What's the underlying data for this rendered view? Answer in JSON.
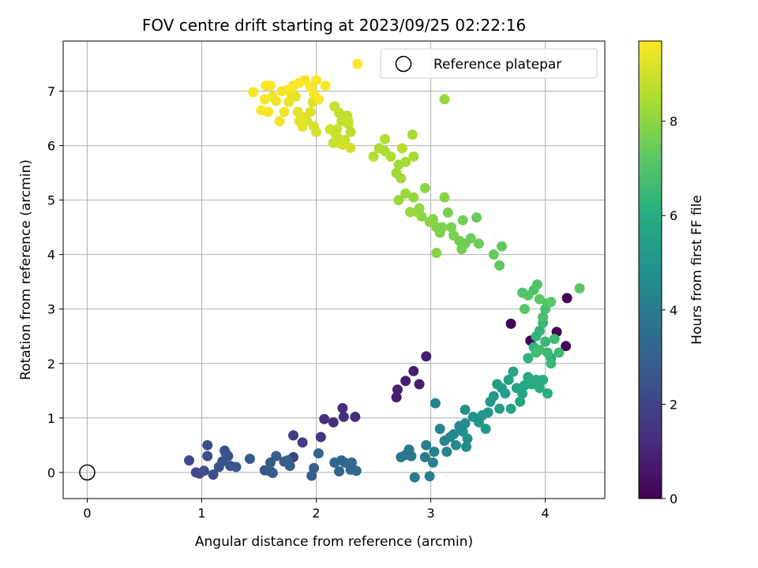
{
  "chart_data": {
    "type": "scatter",
    "title": "FOV centre drift starting at 2023/09/25 02:22:16",
    "xlabel": "Angular distance from reference (arcmin)",
    "ylabel": "Rotation from reference (arcmin)",
    "xlim": [
      -0.21,
      4.52
    ],
    "ylim": [
      -0.48,
      7.92
    ],
    "xticks": [
      "0",
      "1",
      "2",
      "3",
      "4"
    ],
    "yticks": [
      "0",
      "1",
      "2",
      "3",
      "4",
      "5",
      "6",
      "7"
    ],
    "grid": true,
    "legend": {
      "placement": "top-right",
      "entries": [
        "Reference platepar"
      ]
    },
    "reference_point": {
      "x": 0.0,
      "y": 0.0,
      "label": "Reference platepar"
    },
    "colorbar": {
      "label": "Hours from first FF file",
      "colormap": "viridis",
      "range": [
        0,
        9.7
      ],
      "ticks": [
        "0",
        "2",
        "4",
        "6",
        "8"
      ]
    },
    "points": [
      [
        3.7,
        2.73,
        0.1
      ],
      [
        4.19,
        3.2,
        0.1
      ],
      [
        4.18,
        2.32,
        0.1
      ],
      [
        4.1,
        2.58,
        0.1
      ],
      [
        3.87,
        2.42,
        0.1
      ],
      [
        2.96,
        2.13,
        0.8
      ],
      [
        2.85,
        1.86,
        0.8
      ],
      [
        2.78,
        1.68,
        0.8
      ],
      [
        2.71,
        1.52,
        0.8
      ],
      [
        2.7,
        1.38,
        0.8
      ],
      [
        2.9,
        1.62,
        0.8
      ],
      [
        2.23,
        1.18,
        1.3
      ],
      [
        2.24,
        1.02,
        1.3
      ],
      [
        2.34,
        1.02,
        1.3
      ],
      [
        2.07,
        0.98,
        1.3
      ],
      [
        2.15,
        0.92,
        1.3
      ],
      [
        2.04,
        0.65,
        1.5
      ],
      [
        1.8,
        0.68,
        1.7
      ],
      [
        1.88,
        0.55,
        1.7
      ],
      [
        1.8,
        0.28,
        1.9
      ],
      [
        0.89,
        0.22,
        2.2
      ],
      [
        0.95,
        0.0,
        2.2
      ],
      [
        0.98,
        -0.02,
        2.2
      ],
      [
        1.02,
        0.03,
        2.3
      ],
      [
        1.05,
        0.5,
        2.3
      ],
      [
        1.05,
        0.3,
        2.3
      ],
      [
        1.1,
        -0.04,
        2.3
      ],
      [
        1.15,
        0.1,
        2.4
      ],
      [
        1.2,
        0.4,
        2.4
      ],
      [
        1.21,
        0.35,
        2.4
      ],
      [
        1.23,
        0.3,
        2.4
      ],
      [
        1.18,
        0.2,
        2.5
      ],
      [
        1.25,
        0.12,
        2.5
      ],
      [
        1.3,
        0.1,
        2.6
      ],
      [
        1.42,
        0.25,
        2.7
      ],
      [
        1.55,
        0.04,
        2.7
      ],
      [
        1.6,
        0.02,
        2.8
      ],
      [
        1.62,
        -0.01,
        2.8
      ],
      [
        1.6,
        0.18,
        2.8
      ],
      [
        1.65,
        0.3,
        2.9
      ],
      [
        1.72,
        0.2,
        2.9
      ],
      [
        1.75,
        0.22,
        2.9
      ],
      [
        1.77,
        0.12,
        3.0
      ],
      [
        1.98,
        0.08,
        3.0
      ],
      [
        1.96,
        -0.06,
        3.0
      ],
      [
        2.02,
        0.35,
        3.1
      ],
      [
        2.16,
        0.18,
        3.1
      ],
      [
        2.2,
        0.02,
        3.2
      ],
      [
        2.22,
        0.22,
        3.2
      ],
      [
        2.25,
        0.18,
        3.2
      ],
      [
        2.3,
        0.05,
        3.3
      ],
      [
        2.31,
        0.18,
        3.3
      ],
      [
        2.35,
        0.03,
        3.4
      ],
      [
        2.74,
        0.28,
        3.8
      ],
      [
        2.78,
        0.32,
        3.8
      ],
      [
        2.81,
        0.42,
        3.9
      ],
      [
        2.83,
        0.3,
        3.9
      ],
      [
        2.86,
        -0.09,
        4.0
      ],
      [
        2.95,
        0.28,
        4.0
      ],
      [
        2.96,
        0.5,
        4.1
      ],
      [
        2.99,
        -0.07,
        4.1
      ],
      [
        3.02,
        0.18,
        4.2
      ],
      [
        3.03,
        0.38,
        4.2
      ],
      [
        3.04,
        1.27,
        4.3
      ],
      [
        3.08,
        0.8,
        4.3
      ],
      [
        3.12,
        0.58,
        4.4
      ],
      [
        3.14,
        0.38,
        4.4
      ],
      [
        3.17,
        0.65,
        4.5
      ],
      [
        3.2,
        0.7,
        4.5
      ],
      [
        3.22,
        0.5,
        4.6
      ],
      [
        3.25,
        0.85,
        4.6
      ],
      [
        3.28,
        0.75,
        4.7
      ],
      [
        3.3,
        0.9,
        4.7
      ],
      [
        3.3,
        1.15,
        4.8
      ],
      [
        3.32,
        0.62,
        4.8
      ],
      [
        3.31,
        0.47,
        4.8
      ],
      [
        3.37,
        1.02,
        4.9
      ],
      [
        3.42,
        0.92,
        5.0
      ],
      [
        3.45,
        1.05,
        5.0
      ],
      [
        3.48,
        0.8,
        5.1
      ],
      [
        3.52,
        1.3,
        5.1
      ],
      [
        3.5,
        1.1,
        5.2
      ],
      [
        3.55,
        1.4,
        5.2
      ],
      [
        3.58,
        1.62,
        5.3
      ],
      [
        3.6,
        1.17,
        5.3
      ],
      [
        3.62,
        1.55,
        5.4
      ],
      [
        3.65,
        1.45,
        5.4
      ],
      [
        3.68,
        1.7,
        5.5
      ],
      [
        3.7,
        1.17,
        5.5
      ],
      [
        3.72,
        1.85,
        5.6
      ],
      [
        3.75,
        1.55,
        5.6
      ],
      [
        3.78,
        1.3,
        5.7
      ],
      [
        3.8,
        1.45,
        5.7
      ],
      [
        3.82,
        1.6,
        5.8
      ],
      [
        3.85,
        1.75,
        5.8
      ],
      [
        3.88,
        1.62,
        5.9
      ],
      [
        3.92,
        1.7,
        5.9
      ],
      [
        3.95,
        1.55,
        6.0
      ],
      [
        3.98,
        1.7,
        6.0
      ],
      [
        4.02,
        1.45,
        6.1
      ],
      [
        4.05,
        2.1,
        6.1
      ],
      [
        3.85,
        2.1,
        6.2
      ],
      [
        3.9,
        2.3,
        6.2
      ],
      [
        3.92,
        2.5,
        6.3
      ],
      [
        3.95,
        2.6,
        6.3
      ],
      [
        3.98,
        2.75,
        6.4
      ],
      [
        4.0,
        2.4,
        6.4
      ],
      [
        4.02,
        2.2,
        6.5
      ],
      [
        4.05,
        2.0,
        6.5
      ],
      [
        4.08,
        2.45,
        6.6
      ],
      [
        4.12,
        2.2,
        6.6
      ],
      [
        3.92,
        2.2,
        6.7
      ],
      [
        3.95,
        2.25,
        6.7
      ],
      [
        3.98,
        2.85,
        6.8
      ],
      [
        4.0,
        3.0,
        6.8
      ],
      [
        4.02,
        3.1,
        6.9
      ],
      [
        3.9,
        3.35,
        6.9
      ],
      [
        3.93,
        3.45,
        7.0
      ],
      [
        3.8,
        3.3,
        7.0
      ],
      [
        3.85,
        3.25,
        7.1
      ],
      [
        3.82,
        3.0,
        7.1
      ],
      [
        3.95,
        3.18,
        7.2
      ],
      [
        4.05,
        3.13,
        7.2
      ],
      [
        4.3,
        3.38,
        7.2
      ],
      [
        3.6,
        3.8,
        7.3
      ],
      [
        3.62,
        4.15,
        7.3
      ],
      [
        3.55,
        4.0,
        7.4
      ],
      [
        3.4,
        4.68,
        7.4
      ],
      [
        3.42,
        4.2,
        7.5
      ],
      [
        3.35,
        4.3,
        7.5
      ],
      [
        3.3,
        4.2,
        7.5
      ],
      [
        3.27,
        4.1,
        7.6
      ],
      [
        3.25,
        4.25,
        7.6
      ],
      [
        3.28,
        4.63,
        7.6
      ],
      [
        3.2,
        4.35,
        7.7
      ],
      [
        3.18,
        4.5,
        7.7
      ],
      [
        3.15,
        4.77,
        7.7
      ],
      [
        3.1,
        4.5,
        7.8
      ],
      [
        3.08,
        4.4,
        7.8
      ],
      [
        3.05,
        4.5,
        7.8
      ],
      [
        3.12,
        5.05,
        7.9
      ],
      [
        3.05,
        4.03,
        7.9
      ],
      [
        3.02,
        4.65,
        7.9
      ],
      [
        2.99,
        4.6,
        8.0
      ],
      [
        2.95,
        5.22,
        8.0
      ],
      [
        2.92,
        4.7,
        8.0
      ],
      [
        2.9,
        4.85,
        8.1
      ],
      [
        2.88,
        4.78,
        8.1
      ],
      [
        2.85,
        5.05,
        8.1
      ],
      [
        2.82,
        4.78,
        8.2
      ],
      [
        2.78,
        5.12,
        8.2
      ],
      [
        2.72,
        5.0,
        8.2
      ],
      [
        2.74,
        5.4,
        8.3
      ],
      [
        2.7,
        5.5,
        8.3
      ],
      [
        2.72,
        5.65,
        8.3
      ],
      [
        2.78,
        5.7,
        8.4
      ],
      [
        2.85,
        5.8,
        8.4
      ],
      [
        2.84,
        6.2,
        8.4
      ],
      [
        2.65,
        5.8,
        8.5
      ],
      [
        2.6,
        5.9,
        8.5
      ],
      [
        2.55,
        5.95,
        8.5
      ],
      [
        2.5,
        5.8,
        8.6
      ],
      [
        2.6,
        6.12,
        8.6
      ],
      [
        2.75,
        5.95,
        8.6
      ],
      [
        2.3,
        6.25,
        8.7
      ],
      [
        2.28,
        6.4,
        8.7
      ],
      [
        2.27,
        6.55,
        8.7
      ],
      [
        2.25,
        6.1,
        8.8
      ],
      [
        2.22,
        6.45,
        8.8
      ],
      [
        2.2,
        6.6,
        8.8
      ],
      [
        2.18,
        6.3,
        8.9
      ],
      [
        2.16,
        6.72,
        8.9
      ],
      [
        2.15,
        6.05,
        8.9
      ],
      [
        2.12,
        6.3,
        9.0
      ],
      [
        2.3,
        5.96,
        9.0
      ],
      [
        2.2,
        6.12,
        9.0
      ],
      [
        3.12,
        6.85,
        8.2
      ],
      [
        2.0,
        6.25,
        9.1
      ],
      [
        1.98,
        6.35,
        9.1
      ],
      [
        1.97,
        6.8,
        9.1
      ],
      [
        1.95,
        6.62,
        9.2
      ],
      [
        1.92,
        6.45,
        9.2
      ],
      [
        1.9,
        6.52,
        9.2
      ],
      [
        1.88,
        6.35,
        9.3
      ],
      [
        1.85,
        6.45,
        9.3
      ],
      [
        1.84,
        6.62,
        9.3
      ],
      [
        1.82,
        6.9,
        9.3
      ],
      [
        1.8,
        7.1,
        9.4
      ],
      [
        1.78,
        6.95,
        9.4
      ],
      [
        1.76,
        6.8,
        9.4
      ],
      [
        1.75,
        7.02,
        9.4
      ],
      [
        1.72,
        6.62,
        9.5
      ],
      [
        1.7,
        7.0,
        9.5
      ],
      [
        1.68,
        6.45,
        9.5
      ],
      [
        1.65,
        6.82,
        9.5
      ],
      [
        1.62,
        6.9,
        9.5
      ],
      [
        1.58,
        6.62,
        9.6
      ],
      [
        1.55,
        6.85,
        9.6
      ],
      [
        1.52,
        6.65,
        9.6
      ],
      [
        1.45,
        6.98,
        9.6
      ],
      [
        1.98,
        6.95,
        9.6
      ],
      [
        2.0,
        7.2,
        9.6
      ],
      [
        1.95,
        7.08,
        9.6
      ],
      [
        2.02,
        6.85,
        9.6
      ],
      [
        2.08,
        7.1,
        9.6
      ],
      [
        1.9,
        7.2,
        9.6
      ],
      [
        1.85,
        7.15,
        9.7
      ],
      [
        1.78,
        7.05,
        9.7
      ],
      [
        1.6,
        7.1,
        9.7
      ],
      [
        1.56,
        7.1,
        9.7
      ],
      [
        2.36,
        7.5,
        9.7
      ],
      [
        2.17,
        6.22,
        8.9
      ],
      [
        2.2,
        6.05,
        8.9
      ],
      [
        2.23,
        6.02,
        9.0
      ],
      [
        2.28,
        6.45,
        8.9
      ]
    ]
  }
}
